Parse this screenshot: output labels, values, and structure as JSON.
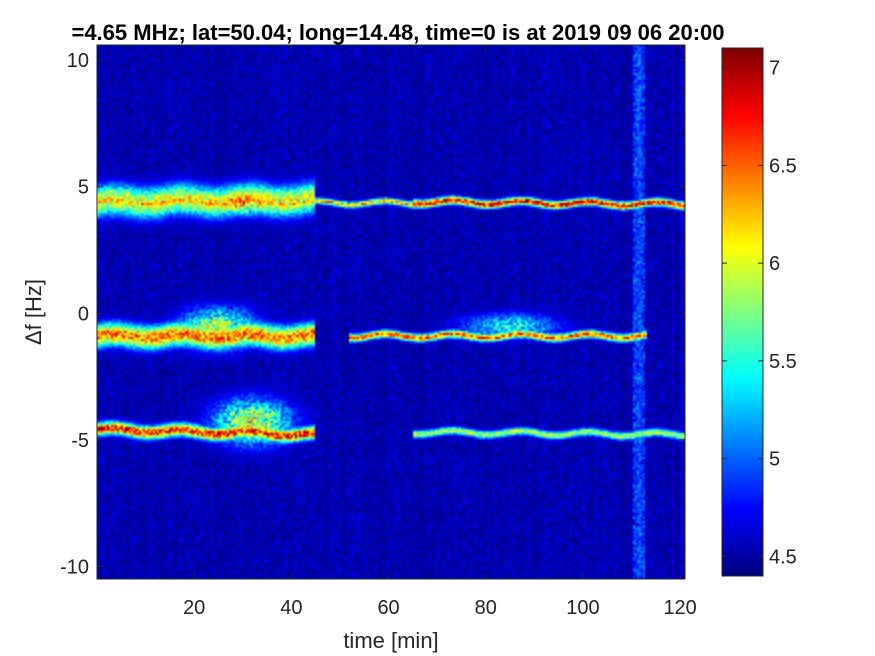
{
  "chart_data": {
    "type": "heatmap",
    "title": "=4.65 MHz;  lat=50.04; long=14.48, time=0 is at 2019 09 06 20:00",
    "xlabel": "time [min]",
    "ylabel": "Δf [Hz]",
    "xlim": [
      0,
      121
    ],
    "ylim": [
      -10.5,
      10.6
    ],
    "xticks": [
      20,
      40,
      60,
      80,
      100,
      120
    ],
    "yticks": [
      10,
      5,
      0,
      -5,
      -10
    ],
    "colorbar": {
      "colormap": "jet",
      "range": [
        4.4,
        7.1
      ],
      "ticks": [
        4.5,
        5,
        5.5,
        6,
        6.5,
        7
      ]
    },
    "background_level": 4.45,
    "traces": [
      {
        "x0": 0,
        "x1": 121,
        "y_start": 4.4,
        "y_end": 4.3,
        "level": 6.4,
        "spread": 0.12
      },
      {
        "x0": 0,
        "x1": 45,
        "y_start": 4.4,
        "y_end": 4.5,
        "level": 6.2,
        "spread": 0.6
      },
      {
        "x0": 65,
        "x1": 121,
        "y_start": 4.4,
        "y_end": 4.3,
        "level": 7.0,
        "spread": 0.15
      },
      {
        "x0": 0,
        "x1": 45,
        "y_start": -0.9,
        "y_end": -0.9,
        "level": 6.6,
        "spread": 0.45
      },
      {
        "x0": 52,
        "x1": 113,
        "y_start": -0.9,
        "y_end": -0.9,
        "level": 6.7,
        "spread": 0.15
      },
      {
        "x0": 0,
        "x1": 45,
        "y_start": -4.6,
        "y_end": -4.8,
        "level": 6.9,
        "spread": 0.25
      },
      {
        "x0": 65,
        "x1": 121,
        "y_start": -4.7,
        "y_end": -4.8,
        "level": 6.0,
        "spread": 0.15
      }
    ],
    "blobs": [
      {
        "x": 30,
        "y": 4.4,
        "level": 6.6,
        "sx": 9,
        "sy": 0.5
      },
      {
        "x": 25,
        "y": -0.6,
        "level": 6.2,
        "sx": 8,
        "sy": 0.8
      },
      {
        "x": 32,
        "y": -4.3,
        "level": 6.3,
        "sx": 8,
        "sy": 0.9
      },
      {
        "x": 85,
        "y": -0.5,
        "level": 5.6,
        "sx": 10,
        "sy": 0.5
      }
    ],
    "vertical_streaks": [
      111,
      112
    ]
  }
}
